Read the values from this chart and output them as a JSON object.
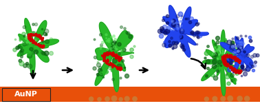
{
  "background_color": "#ffffff",
  "surface_color": "#e8500a",
  "aunp_label": "AuNP",
  "aunp_label_color": "#ffffff",
  "aunp_box_color": "#e8500a",
  "protein_green_light": "#5de85d",
  "protein_green_mid": "#28b828",
  "protein_green_dark": "#0a6010",
  "protein_blue_light": "#6688ff",
  "protein_blue_mid": "#2244ee",
  "protein_blue_dark": "#080e6a",
  "peptide_color": "#cc0000",
  "nanoparticle_color": "#cc7733",
  "figsize": [
    3.78,
    1.57
  ],
  "dpi": 100
}
